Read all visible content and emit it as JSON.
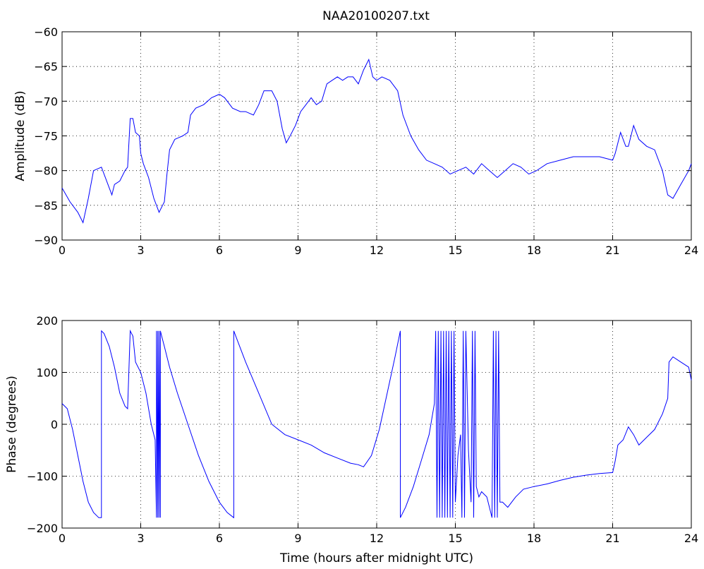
{
  "title": "NAA20100207.txt",
  "colors": {
    "line": "#0000ff",
    "axes": "#000000",
    "background": "#ffffff"
  },
  "chart_data": [
    {
      "type": "line",
      "xlabel": "",
      "ylabel": "Amplitude (dB)",
      "xlim": [
        0,
        24
      ],
      "ylim": [
        -90,
        -60
      ],
      "grid": true,
      "xticks": [
        0,
        3,
        6,
        9,
        12,
        15,
        18,
        21,
        24
      ],
      "xtick_labels": [
        "0",
        "3",
        "6",
        "9",
        "12",
        "15",
        "18",
        "21",
        "24"
      ],
      "yticks": [
        -90,
        -85,
        -80,
        -75,
        -70,
        -65,
        -60
      ],
      "ytick_labels": [
        "−90",
        "−85",
        "−80",
        "−75",
        "−70",
        "−65",
        "−60"
      ],
      "series": [
        {
          "x": [
            0,
            0.3,
            0.6,
            0.8,
            1.0,
            1.2,
            1.5,
            1.7,
            1.9,
            2.0,
            2.2,
            2.4,
            2.5,
            2.6,
            2.7,
            2.8,
            2.95,
            3.0,
            3.1,
            3.3,
            3.5,
            3.7,
            3.9,
            4.0,
            4.1,
            4.3,
            4.6,
            4.8,
            4.9,
            5.1,
            5.4,
            5.7,
            6.0,
            6.2,
            6.5,
            6.8,
            7.0,
            7.3,
            7.5,
            7.7,
            8.0,
            8.2,
            8.4,
            8.55,
            8.7,
            8.9,
            9.1,
            9.3,
            9.5,
            9.7,
            9.9,
            10.1,
            10.3,
            10.5,
            10.7,
            10.9,
            11.1,
            11.3,
            11.5,
            11.7,
            11.85,
            12.0,
            12.2,
            12.5,
            12.8,
            13.0,
            13.3,
            13.6,
            13.9,
            14.2,
            14.5,
            14.8,
            15.1,
            15.4,
            15.7,
            16.0,
            16.3,
            16.6,
            16.9,
            17.2,
            17.5,
            17.8,
            18.1,
            18.5,
            19.0,
            19.5,
            20.0,
            20.5,
            21.0,
            21.1,
            21.3,
            21.5,
            21.6,
            21.8,
            22.0,
            22.3,
            22.6,
            22.9,
            23.1,
            23.3,
            23.6,
            23.9,
            24.0
          ],
          "y": [
            -82.5,
            -84.5,
            -86.0,
            -87.5,
            -84.0,
            -80.0,
            -79.5,
            -81.5,
            -83.5,
            -82.0,
            -81.5,
            -80.0,
            -79.5,
            -72.5,
            -72.5,
            -74.5,
            -75.0,
            -77.5,
            -79.0,
            -81.0,
            -84.0,
            -86.0,
            -84.5,
            -80.5,
            -77.0,
            -75.5,
            -75.0,
            -74.5,
            -72.0,
            -71.0,
            -70.5,
            -69.5,
            -69.0,
            -69.5,
            -71.0,
            -71.5,
            -71.5,
            -72.0,
            -70.5,
            -68.5,
            -68.5,
            -70.0,
            -74.0,
            -76.0,
            -75.0,
            -73.5,
            -71.5,
            -70.5,
            -69.5,
            -70.5,
            -70.0,
            -67.5,
            -67.0,
            -66.5,
            -67.0,
            -66.5,
            -66.5,
            -67.5,
            -65.5,
            -64.0,
            -66.5,
            -67.0,
            -66.5,
            -67.0,
            -68.5,
            -72.0,
            -75.0,
            -77.0,
            -78.5,
            -79.0,
            -79.5,
            -80.5,
            -80.0,
            -79.5,
            -80.5,
            -79.0,
            -80.0,
            -81.0,
            -80.0,
            -79.0,
            -79.5,
            -80.5,
            -80.0,
            -79.0,
            -78.5,
            -78.0,
            -78.0,
            -78.0,
            -78.5,
            -77.5,
            -74.5,
            -76.5,
            -76.5,
            -73.5,
            -75.5,
            -76.5,
            -77.0,
            -80.0,
            -83.5,
            -84.0,
            -82.0,
            -80.0,
            -79.0
          ]
        }
      ]
    },
    {
      "type": "line",
      "xlabel": "Time (hours after midnight UTC)",
      "ylabel": "Phase (degrees)",
      "xlim": [
        0,
        24
      ],
      "ylim": [
        -200,
        200
      ],
      "grid": true,
      "xticks": [
        0,
        3,
        6,
        9,
        12,
        15,
        18,
        21,
        24
      ],
      "xtick_labels": [
        "0",
        "3",
        "6",
        "9",
        "12",
        "15",
        "18",
        "21",
        "24"
      ],
      "yticks": [
        -200,
        -100,
        0,
        100,
        200
      ],
      "ytick_labels": [
        "−200",
        "−100",
        "0",
        "100",
        "200"
      ],
      "series": [
        {
          "x": [
            0,
            0.2,
            0.4,
            0.6,
            0.8,
            1.0,
            1.2,
            1.4,
            1.5,
            1.5,
            1.6,
            1.8,
            2.0,
            2.2,
            2.4,
            2.5,
            2.6,
            2.7,
            2.8,
            3.0,
            3.2,
            3.4,
            3.55,
            3.6,
            3.6,
            3.65,
            3.65,
            3.7,
            3.7,
            3.75,
            3.75,
            3.8,
            3.9,
            4.1,
            4.4,
            4.8,
            5.2,
            5.6,
            6.0,
            6.3,
            6.55,
            6.55,
            6.7,
            7.0,
            7.5,
            8.0,
            8.5,
            9.0,
            9.5,
            10.0,
            10.5,
            11.0,
            11.3,
            11.5,
            11.8,
            12.1,
            12.4,
            12.7,
            12.9,
            12.9,
            13.1,
            13.4,
            13.7,
            14.0,
            14.2,
            14.25,
            14.3,
            14.35,
            14.4,
            14.45,
            14.5,
            14.55,
            14.6,
            14.65,
            14.7,
            14.75,
            14.8,
            14.85,
            14.9,
            14.95,
            15.0,
            15.1,
            15.2,
            15.25,
            15.3,
            15.35,
            15.4,
            15.5,
            15.6,
            15.65,
            15.7,
            15.75,
            15.8,
            15.9,
            16.0,
            16.2,
            16.4,
            16.45,
            16.5,
            16.55,
            16.6,
            16.65,
            16.7,
            16.8,
            17.0,
            17.3,
            17.6,
            18.0,
            18.5,
            19.0,
            19.5,
            20.0,
            20.5,
            21.0,
            21.1,
            21.2,
            21.4,
            21.6,
            21.8,
            22.0,
            22.3,
            22.6,
            22.9,
            23.1,
            23.15,
            23.3,
            23.6,
            23.9,
            24.0
          ],
          "y": [
            40,
            30,
            -10,
            -60,
            -110,
            -150,
            -170,
            -180,
            -180,
            180,
            175,
            150,
            110,
            60,
            35,
            30,
            180,
            170,
            120,
            100,
            60,
            0,
            -30,
            -180,
            180,
            -180,
            180,
            -180,
            180,
            -180,
            180,
            170,
            150,
            110,
            60,
            0,
            -60,
            -110,
            -150,
            -170,
            -180,
            180,
            160,
            120,
            60,
            0,
            -20,
            -30,
            -40,
            -55,
            -65,
            -75,
            -78,
            -82,
            -60,
            -10,
            60,
            130,
            180,
            -180,
            -160,
            -120,
            -70,
            -20,
            40,
            180,
            -180,
            180,
            -180,
            180,
            -180,
            180,
            -180,
            180,
            -180,
            180,
            -180,
            180,
            -180,
            180,
            -150,
            -60,
            -20,
            -180,
            180,
            -180,
            180,
            -50,
            -150,
            180,
            -180,
            180,
            -120,
            -140,
            -130,
            -140,
            -180,
            180,
            -180,
            180,
            -180,
            180,
            -150,
            -150,
            -160,
            -140,
            -125,
            -120,
            -115,
            -108,
            -102,
            -98,
            -95,
            -93,
            -70,
            -40,
            -30,
            -5,
            -20,
            -40,
            -25,
            -10,
            20,
            50,
            120,
            130,
            120,
            110,
            85
          ]
        }
      ]
    }
  ]
}
